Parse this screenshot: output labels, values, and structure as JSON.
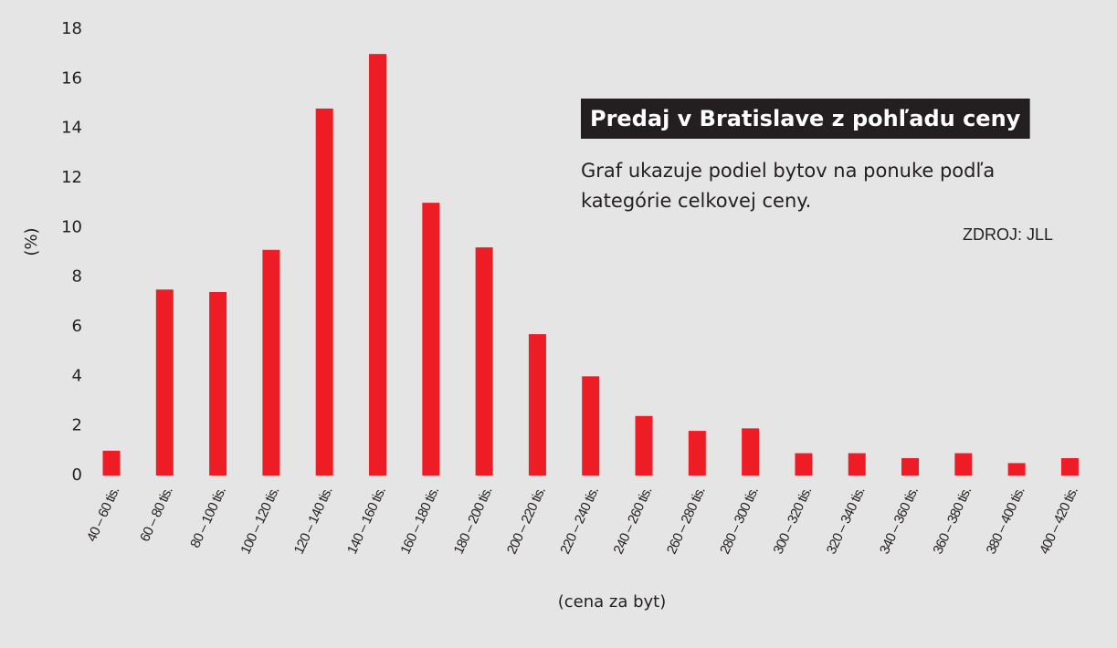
{
  "chart_data": {
    "type": "bar",
    "title": "Predaj v Bratislave z pohľadu ceny",
    "subtitle": [
      "Graf ukazuje podiel bytov na ponuke podľa",
      "kategórie celkovej ceny."
    ],
    "source": "ZDROJ: JLL",
    "y_label": "(%)",
    "x_label": "(cena za byt)",
    "categories": [
      "40 – 60 tis.",
      "60 – 80 tis.",
      "80 – 100 tis.",
      "100 – 120 tis.",
      "120 – 140 tis.",
      "140 – 160 tis.",
      "160 – 180 tis.",
      "180 – 200 tis.",
      "200 – 220 tis.",
      "220 – 240 tis.",
      "240 – 260 tis.",
      "260 – 280 tis.",
      "280 – 300 tis.",
      "300 – 320 tis.",
      "320 – 340 tis.",
      "340 – 360 tis.",
      "360 – 380 tis.",
      "380 – 400 tis.",
      "400 – 420 tis."
    ],
    "values": [
      1.0,
      7.5,
      7.4,
      9.1,
      14.8,
      17.0,
      11.0,
      9.2,
      5.7,
      4.0,
      2.4,
      1.8,
      1.9,
      0.9,
      0.9,
      0.7,
      0.9,
      0.5,
      0.7
    ],
    "color": "#ee1c25",
    "ylim": [
      0,
      18
    ],
    "yticks": [
      0,
      2,
      4,
      6,
      8,
      10,
      12,
      14,
      16,
      18
    ],
    "grid": false
  }
}
